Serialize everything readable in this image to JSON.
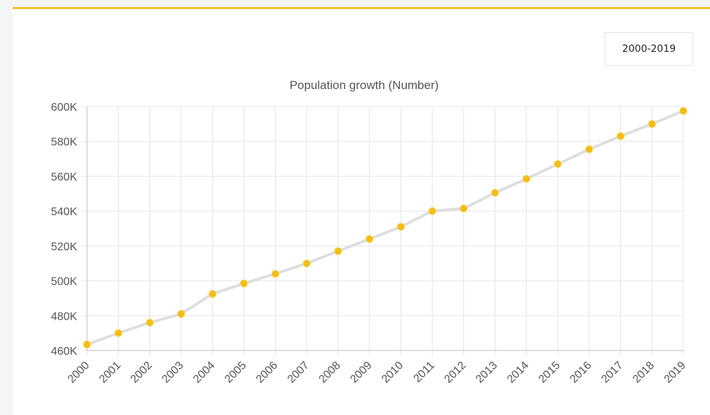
{
  "range_selector": {
    "label": "2000-2019"
  },
  "colors": {
    "accent": "#f0c22a",
    "line": "#dedede",
    "point": "#f2bd16"
  },
  "chart_data": {
    "type": "line",
    "title": "Population growth (Number)",
    "xlabel": "",
    "ylabel": "",
    "categories": [
      "2000",
      "2001",
      "2002",
      "2003",
      "2004",
      "2005",
      "2006",
      "2007",
      "2008",
      "2009",
      "2010",
      "2011",
      "2012",
      "2013",
      "2014",
      "2015",
      "2016",
      "2017",
      "2018",
      "2019"
    ],
    "series": [
      {
        "values": [
          463500,
          470000,
          476000,
          481000,
          492500,
          498500,
          504000,
          510000,
          517000,
          524000,
          531000,
          540000,
          541500,
          550500,
          558500,
          567000,
          575500,
          583000,
          590000,
          597500
        ]
      }
    ],
    "ylim": [
      460000,
      600000
    ],
    "yticks": [
      460000,
      480000,
      500000,
      520000,
      540000,
      560000,
      580000,
      600000
    ],
    "ytick_labels": [
      "460K",
      "480K",
      "500K",
      "520K",
      "540K",
      "560K",
      "580K",
      "600K"
    ],
    "grid": true,
    "legend": "none"
  }
}
